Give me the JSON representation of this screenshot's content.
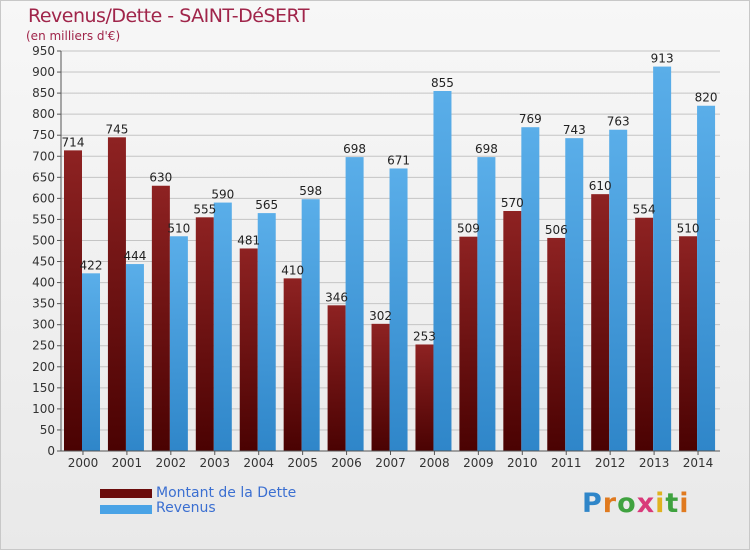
{
  "header": {
    "title": "Revenus/Dette - SAINT-DéSERT",
    "subtitle": "(en milliers d'€)"
  },
  "legend": {
    "items": [
      {
        "label": "Montant de la Dette",
        "color": "#6b0c0c"
      },
      {
        "label": "Revenus",
        "color": "#4aa3e6"
      }
    ]
  },
  "logo": {
    "text": "Proxiti"
  },
  "colors": {
    "dette_top": "#8e2222",
    "dette_bottom": "#4a0202",
    "revenus_top": "#5aaee9",
    "revenus_bottom": "#2f86c9",
    "grid": "#c4c4c4"
  },
  "chart_data": {
    "type": "bar",
    "title": "Revenus/Dette - SAINT-DéSERT",
    "subtitle": "(en milliers d'€)",
    "categories": [
      "2000",
      "2001",
      "2002",
      "2003",
      "2004",
      "2005",
      "2006",
      "2007",
      "2008",
      "2009",
      "2010",
      "2011",
      "2012",
      "2013",
      "2014"
    ],
    "series": [
      {
        "name": "Montant de la Dette",
        "values": [
          714,
          745,
          630,
          555,
          481,
          410,
          346,
          302,
          253,
          509,
          570,
          506,
          610,
          554,
          510
        ]
      },
      {
        "name": "Revenus",
        "values": [
          422,
          444,
          510,
          590,
          565,
          598,
          698,
          671,
          855,
          698,
          769,
          743,
          763,
          913,
          820
        ]
      }
    ],
    "ylim": [
      0,
      950
    ],
    "yticks": [
      0,
      50,
      100,
      150,
      200,
      250,
      300,
      350,
      400,
      450,
      500,
      550,
      600,
      650,
      700,
      750,
      800,
      850,
      900,
      950
    ],
    "grid": true,
    "legend_position": "bottom-left"
  }
}
